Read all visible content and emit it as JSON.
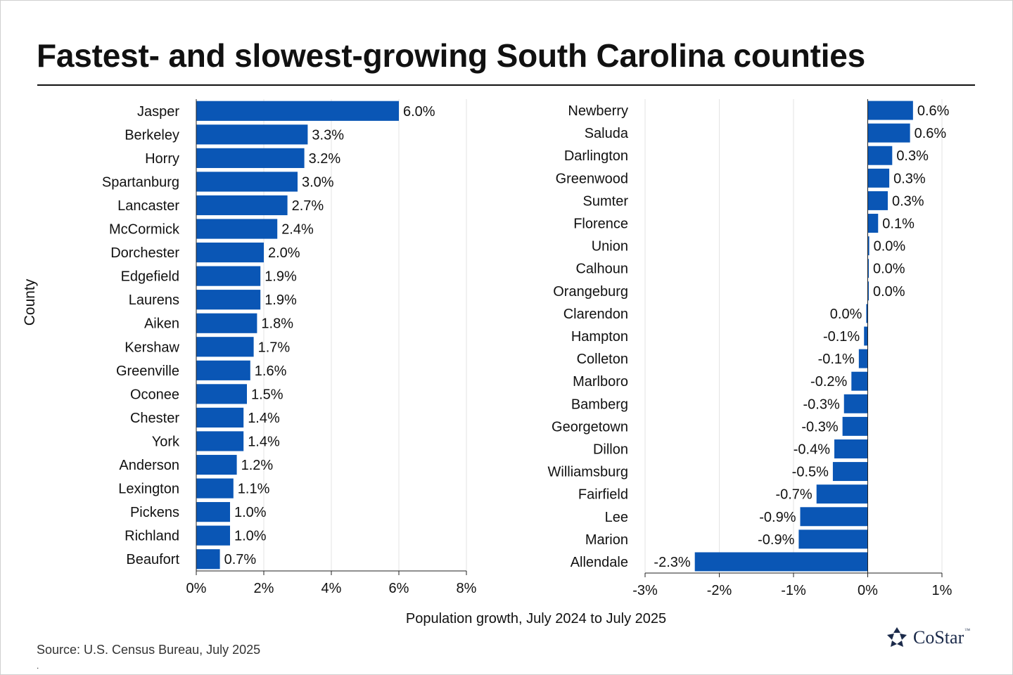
{
  "title": "Fastest- and slowest-growing South Carolina counties",
  "source": "Source: U.S. Census Bureau, July 2025",
  "footnote_mark": ".",
  "logo": {
    "name": "CoStar",
    "tm": "™",
    "icon": "costar-star-icon"
  },
  "colors": {
    "bar": "#0a56b5",
    "grid": "#e3e3e3",
    "axis": "#222222",
    "text": "#111111"
  },
  "chart_data": [
    {
      "type": "bar",
      "orientation": "horizontal",
      "subset": "fastest-growing",
      "ylabel": "County",
      "xlabel": "Population growth, July 2024 to July 2025",
      "xlim": [
        0,
        8
      ],
      "xticks": [
        "0%",
        "2%",
        "4%",
        "6%",
        "8%"
      ],
      "grid": true,
      "categories": [
        "Jasper",
        "Berkeley",
        "Horry",
        "Spartanburg",
        "Lancaster",
        "McCormick",
        "Dorchester",
        "Edgefield",
        "Laurens",
        "Aiken",
        "Kershaw",
        "Greenville",
        "Oconee",
        "Chester",
        "York",
        "Anderson",
        "Lexington",
        "Pickens",
        "Richland",
        "Beaufort"
      ],
      "values": [
        6.0,
        3.3,
        3.2,
        3.0,
        2.7,
        2.4,
        2.0,
        1.9,
        1.9,
        1.8,
        1.7,
        1.6,
        1.5,
        1.4,
        1.4,
        1.2,
        1.1,
        1.0,
        1.0,
        0.7
      ],
      "labels": [
        "6.0%",
        "3.3%",
        "3.2%",
        "3.0%",
        "2.7%",
        "2.4%",
        "2.0%",
        "1.9%",
        "1.9%",
        "1.8%",
        "1.7%",
        "1.6%",
        "1.5%",
        "1.4%",
        "1.4%",
        "1.2%",
        "1.1%",
        "1.0%",
        "1.0%",
        "0.7%"
      ]
    },
    {
      "type": "bar",
      "orientation": "horizontal",
      "subset": "slowest-growing",
      "xlabel": "Population growth, July 2024 to July 2025",
      "xlim": [
        -3,
        1
      ],
      "xticks": [
        "-3%",
        "-2%",
        "-1%",
        "0%",
        "1%"
      ],
      "grid": true,
      "categories": [
        "Newberry",
        "Saluda",
        "Darlington",
        "Greenwood",
        "Sumter",
        "Florence",
        "Union",
        "Calhoun",
        "Orangeburg",
        "Clarendon",
        "Hampton",
        "Colleton",
        "Marlboro",
        "Bamberg",
        "Georgetown",
        "Dillon",
        "Williamsburg",
        "Fairfield",
        "Lee",
        "Marion",
        "Allendale"
      ],
      "values": [
        0.61,
        0.57,
        0.33,
        0.29,
        0.27,
        0.14,
        0.02,
        0.01,
        0.01,
        -0.02,
        -0.05,
        -0.12,
        -0.22,
        -0.32,
        -0.34,
        -0.45,
        -0.47,
        -0.69,
        -0.91,
        -0.93,
        -2.33
      ],
      "labels": [
        "0.6%",
        "0.6%",
        "0.3%",
        "0.3%",
        "0.3%",
        "0.1%",
        "0.0%",
        "0.0%",
        "0.0%",
        "0.0%",
        "-0.1%",
        "-0.1%",
        "-0.2%",
        "-0.3%",
        "-0.3%",
        "-0.4%",
        "-0.5%",
        "-0.7%",
        "-0.9%",
        "-0.9%",
        "-2.3%"
      ]
    }
  ]
}
